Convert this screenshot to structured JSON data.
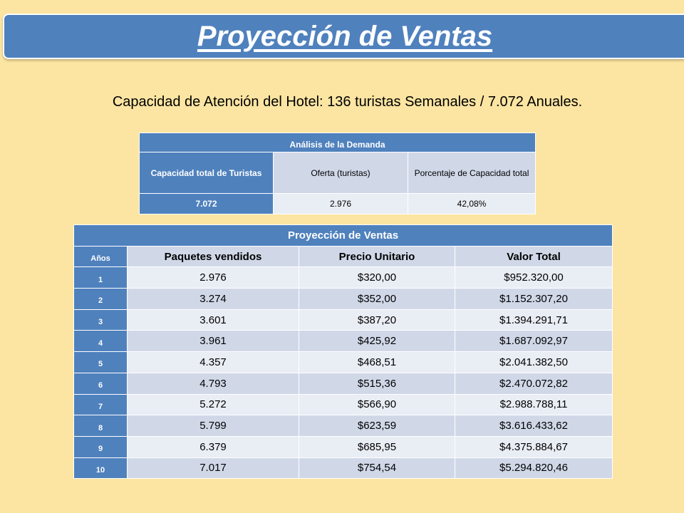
{
  "title": "Proyección de Ventas",
  "subtitle": "Capacidad de Atención del Hotel: 136 turistas Semanales / 7.072 Anuales.",
  "demand_table": {
    "title": "Análisis de la Demanda",
    "col1_header": "Capacidad total de Turistas",
    "col2_header": "Oferta (turistas)",
    "col3_header": "Porcentaje de Capacidad total",
    "col1_value": "7.072",
    "col2_value": "2.976",
    "col3_value": "42,08%"
  },
  "projection_table": {
    "title": "Proyección de Ventas",
    "headers": [
      "Años",
      "Paquetes vendidos",
      "Precio Unitario",
      "Valor Total"
    ],
    "rows": [
      [
        "1",
        "2.976",
        "$320,00",
        "$952.320,00"
      ],
      [
        "2",
        "3.274",
        "$352,00",
        "$1.152.307,20"
      ],
      [
        "3",
        "3.601",
        "$387,20",
        "$1.394.291,71"
      ],
      [
        "4",
        "3.961",
        "$425,92",
        "$1.687.092,97"
      ],
      [
        "5",
        "4.357",
        "$468,51",
        "$2.041.382,50"
      ],
      [
        "6",
        "4.793",
        "$515,36",
        "$2.470.072,82"
      ],
      [
        "7",
        "5.272",
        "$566,90",
        "$2.988.788,11"
      ],
      [
        "8",
        "5.799",
        "$623,59",
        "$3.616.433,62"
      ],
      [
        "9",
        "6.379",
        "$685,95",
        "$4.375.884,67"
      ],
      [
        "10",
        "7.017",
        "$754,54",
        "$5.294.820,46"
      ]
    ]
  },
  "colors": {
    "background": "#fce5a2",
    "accent_blue": "#4f81bd",
    "row_light": "#e9edf4",
    "row_dark": "#d0d8e8"
  }
}
